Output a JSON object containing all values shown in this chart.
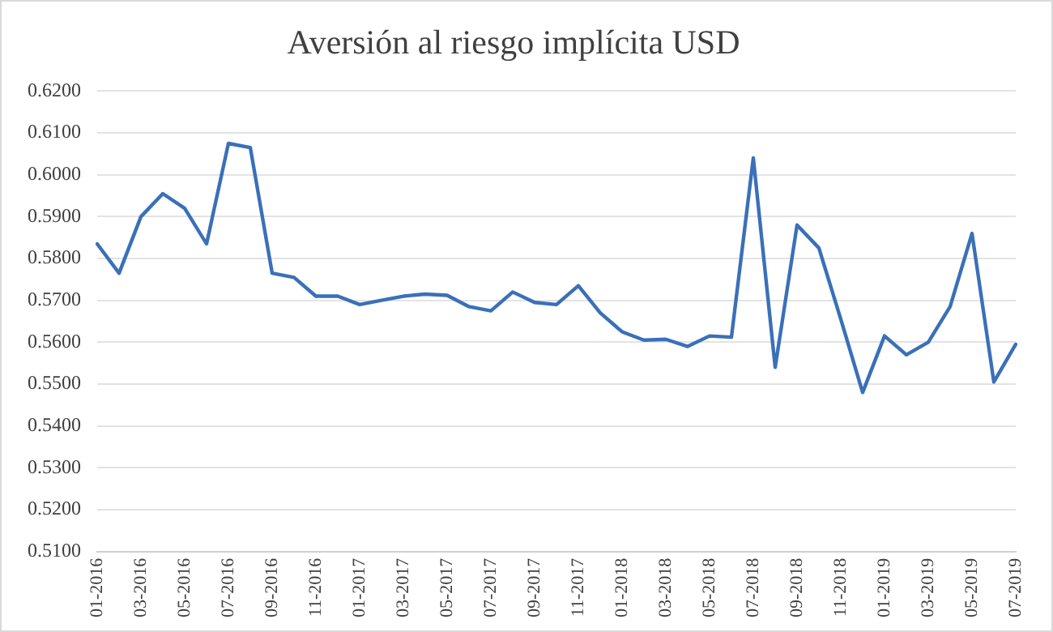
{
  "chart_data": {
    "type": "line",
    "title": "Aversión al riesgo implícita USD",
    "categories": [
      "01-2016",
      null,
      "03-2016",
      null,
      "05-2016",
      null,
      "07-2016",
      null,
      "09-2016",
      null,
      "11-2016",
      null,
      "01-2017",
      null,
      "03-2017",
      null,
      "05-2017",
      null,
      "07-2017",
      null,
      "09-2017",
      null,
      "11-2017",
      null,
      "01-2018",
      null,
      "03-2018",
      null,
      "05-2018",
      null,
      "07-2018",
      null,
      "09-2018",
      null,
      "11-2018",
      null,
      "01-2019",
      null,
      "03-2019",
      null,
      "05-2019",
      null,
      "07-2019"
    ],
    "series": [
      {
        "color": "#3a70b8",
        "values": [
          0.5835,
          0.5765,
          0.59,
          0.5955,
          0.592,
          0.5835,
          0.6075,
          0.6065,
          0.5765,
          0.5755,
          0.571,
          0.571,
          0.569,
          0.57,
          0.571,
          0.5715,
          0.5712,
          0.5685,
          0.5675,
          0.572,
          0.5695,
          0.569,
          0.5735,
          0.567,
          0.5625,
          0.5605,
          0.5607,
          0.559,
          0.5615,
          0.5612,
          0.604,
          0.554,
          0.588,
          0.5825,
          0.5655,
          0.548,
          0.5615,
          0.557,
          0.56,
          0.5685,
          0.586,
          0.5505,
          0.5595
        ]
      }
    ],
    "ylim": [
      0.51,
      0.62
    ],
    "yticks": [
      {
        "value": 0.51,
        "label": "0.5100"
      },
      {
        "value": 0.52,
        "label": "0.5200"
      },
      {
        "value": 0.53,
        "label": "0.5300"
      },
      {
        "value": 0.54,
        "label": "0.5400"
      },
      {
        "value": 0.55,
        "label": "0.5500"
      },
      {
        "value": 0.56,
        "label": "0.5600"
      },
      {
        "value": 0.57,
        "label": "0.5700"
      },
      {
        "value": 0.58,
        "label": "0.5800"
      },
      {
        "value": 0.59,
        "label": "0.5900"
      },
      {
        "value": 0.6,
        "label": "0.6000"
      },
      {
        "value": 0.61,
        "label": "0.6100"
      },
      {
        "value": 0.62,
        "label": "0.6200"
      }
    ],
    "grid": "y",
    "legend": false,
    "marker": "none",
    "line_style": "solid"
  }
}
